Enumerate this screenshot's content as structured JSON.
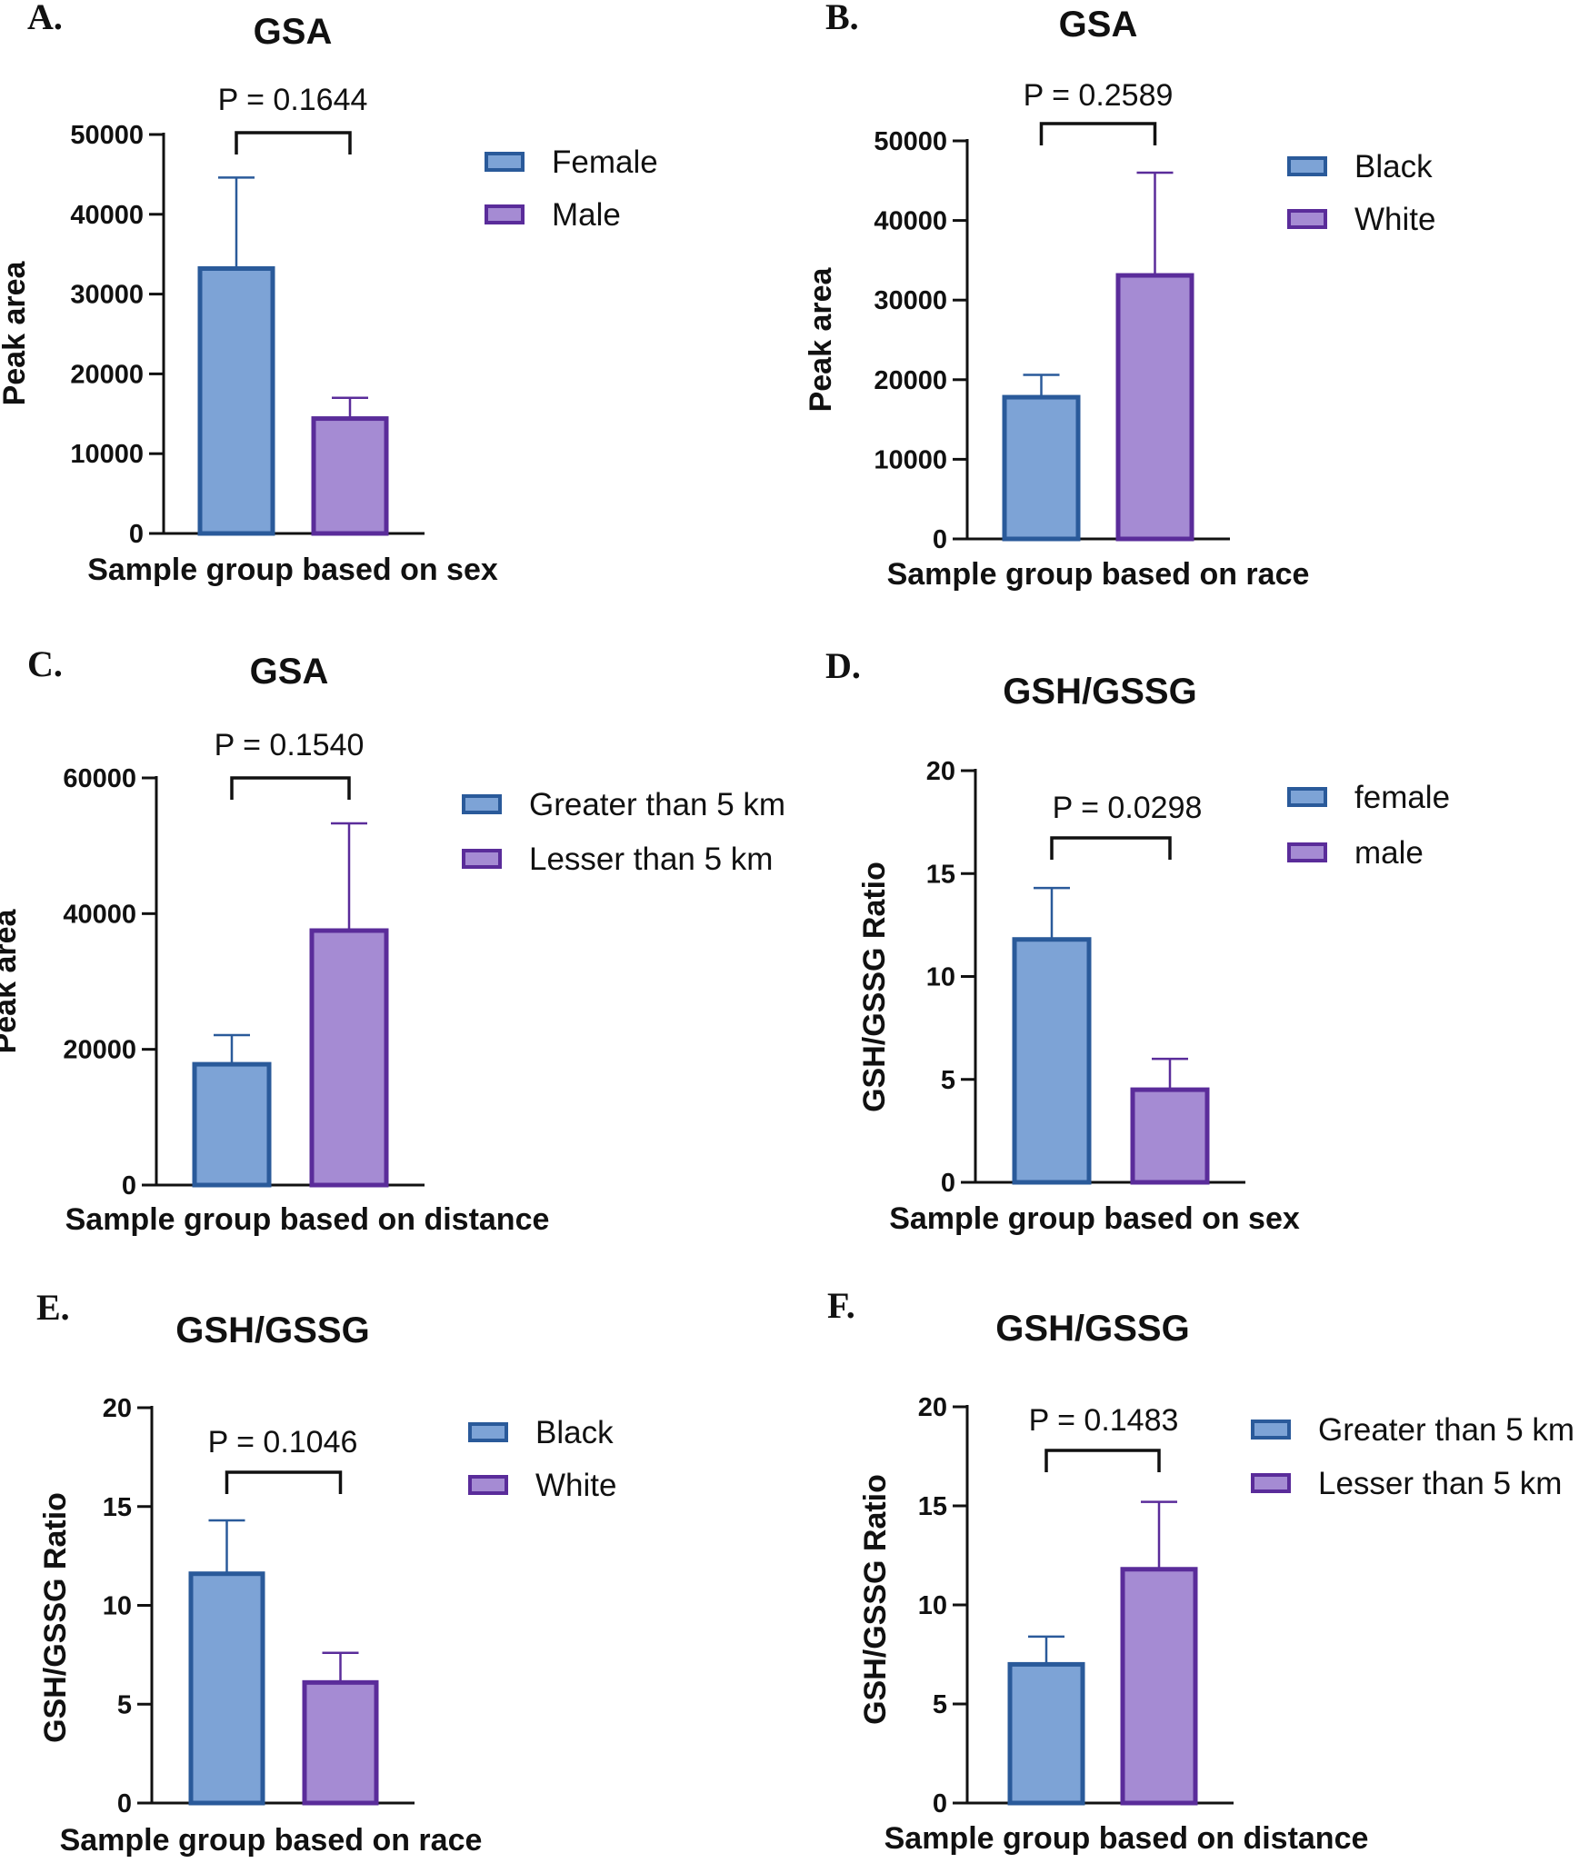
{
  "colors": {
    "female_fill": "#7DA3D6",
    "female_stroke": "#2A5A9A",
    "male_fill": "#A58BD3",
    "male_stroke": "#5A2C9A",
    "axis": "#111111"
  },
  "chart_data": [
    {
      "panel": "A.",
      "type": "bar",
      "title": "GSA",
      "xlabel": "Sample group based on sex",
      "ylabel": "Peak area",
      "ylim": [
        0,
        50000
      ],
      "yticks": [
        0,
        10000,
        20000,
        30000,
        40000,
        50000
      ],
      "ytick_labels": [
        "0",
        "10000",
        "20000",
        "30000",
        "40000",
        "50000"
      ],
      "categories": [
        "Female",
        "Male"
      ],
      "values": [
        33200,
        14400
      ],
      "errors": [
        11400,
        2600
      ],
      "p_value": "P = 0.1644",
      "legend": [
        "Female",
        "Male"
      ]
    },
    {
      "panel": "B.",
      "type": "bar",
      "title": "GSA",
      "xlabel": "Sample group based on race",
      "ylabel": "Peak area",
      "ylim": [
        0,
        50000
      ],
      "yticks": [
        0,
        10000,
        20000,
        30000,
        40000,
        50000
      ],
      "ytick_labels": [
        "0",
        "10000",
        "20000",
        "30000",
        "40000",
        "50000"
      ],
      "categories": [
        "Black",
        "White"
      ],
      "values": [
        17800,
        33100
      ],
      "errors": [
        2800,
        12900
      ],
      "p_value": "P = 0.2589",
      "legend": [
        "Black",
        "White"
      ]
    },
    {
      "panel": "C.",
      "type": "bar",
      "title": "GSA",
      "xlabel": "Sample group based on distance",
      "ylabel": "Peak area",
      "ylim": [
        0,
        60000
      ],
      "yticks": [
        0,
        20000,
        40000,
        60000
      ],
      "ytick_labels": [
        "0",
        "20000",
        "40000",
        "60000"
      ],
      "categories": [
        "Greater than 5 km",
        "Lesser than 5 km"
      ],
      "values": [
        17800,
        37500
      ],
      "errors": [
        4300,
        15800
      ],
      "p_value": "P = 0.1540",
      "legend": [
        "Greater than 5 km",
        "Lesser than 5 km"
      ]
    },
    {
      "panel": "D.",
      "type": "bar",
      "title": "GSH/GSSG",
      "xlabel": "Sample group based on sex",
      "ylabel": "GSH/GSSG Ratio",
      "ylim": [
        0,
        20
      ],
      "yticks": [
        0,
        5,
        10,
        15,
        20
      ],
      "ytick_labels": [
        "0",
        "5",
        "10",
        "15",
        "20"
      ],
      "categories": [
        "female",
        "male"
      ],
      "values": [
        11.8,
        4.5
      ],
      "errors": [
        2.5,
        1.5
      ],
      "p_value": "P = 0.0298",
      "legend": [
        "female",
        "male"
      ]
    },
    {
      "panel": "E.",
      "type": "bar",
      "title": "GSH/GSSG",
      "xlabel": "Sample group based on race",
      "ylabel": "GSH/GSSG Ratio",
      "ylim": [
        0,
        20
      ],
      "yticks": [
        0,
        5,
        10,
        15,
        20
      ],
      "ytick_labels": [
        "0",
        "5",
        "10",
        "15",
        "20"
      ],
      "categories": [
        "Black",
        "White"
      ],
      "values": [
        11.6,
        6.1
      ],
      "errors": [
        2.7,
        1.5
      ],
      "p_value": "P = 0.1046",
      "legend": [
        "Black",
        "White"
      ]
    },
    {
      "panel": "F.",
      "type": "bar",
      "title": "GSH/GSSG",
      "xlabel": "Sample group based on distance",
      "ylabel": "GSH/GSSG Ratio",
      "ylim": [
        0,
        20
      ],
      "yticks": [
        0,
        5,
        10,
        15,
        20
      ],
      "ytick_labels": [
        "0",
        "5",
        "10",
        "15",
        "20"
      ],
      "categories": [
        "Greater than 5 km",
        "Lesser than 5 km"
      ],
      "values": [
        7.0,
        11.8
      ],
      "errors": [
        1.4,
        3.4
      ],
      "p_value": "P = 0.1483",
      "legend": [
        "Greater than 5 km",
        "Lesser than 5 km"
      ]
    }
  ]
}
